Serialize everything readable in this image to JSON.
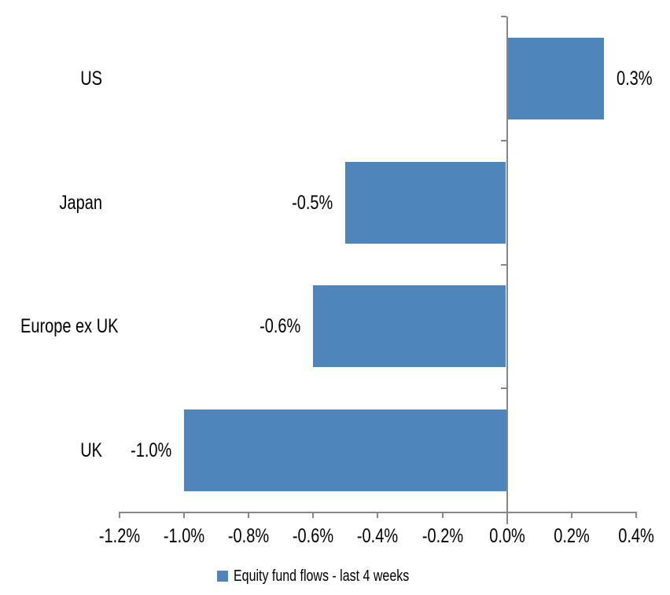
{
  "chart_data": {
    "type": "bar",
    "orientation": "horizontal",
    "title": "",
    "categories": [
      "US",
      "Japan",
      "Europe ex UK",
      "UK"
    ],
    "values": [
      0.3,
      -0.5,
      -0.6,
      -1.0
    ],
    "value_unit": "%",
    "data_labels": [
      "0.3%",
      "-0.5%",
      "-0.6%",
      "-1.0%"
    ],
    "series_name": "Equity fund flows - last 4 weeks",
    "xlim": [
      -1.2,
      0.4
    ],
    "x_tick_values": [
      -1.2,
      -1.0,
      -0.8,
      -0.6,
      -0.4,
      -0.2,
      0.0,
      0.2,
      0.4
    ],
    "x_tick_labels": [
      "-1.2%",
      "-1.0%",
      "-0.8%",
      "-0.6%",
      "-0.4%",
      "-0.2%",
      "0.0%",
      "0.2%",
      "0.4%"
    ],
    "grid": false,
    "legend_position": "bottom-center",
    "colors": {
      "bar": "#4E86BC",
      "axis": "#878787",
      "text": "#000000",
      "background": "#FFFFFF"
    }
  },
  "legend": {
    "label": "Equity fund flows - last 4 weeks"
  }
}
